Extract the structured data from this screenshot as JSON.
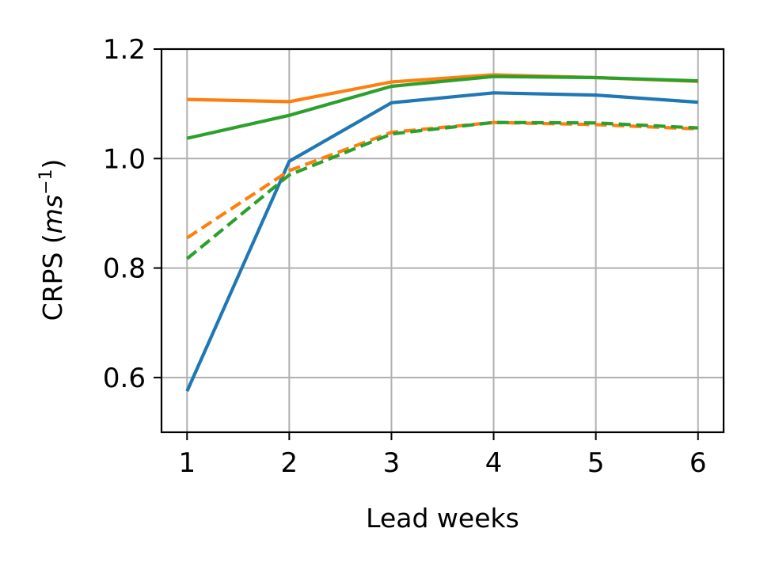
{
  "chart_data": {
    "type": "line",
    "xlabel": "Lead weeks",
    "ylabel_prefix": "CRPS (",
    "ylabel_unit_base": "ms",
    "ylabel_unit_exp": "−1",
    "ylabel_suffix": ")",
    "x": [
      1,
      2,
      3,
      4,
      5,
      6
    ],
    "xlim": [
      0.75,
      6.25
    ],
    "ylim": [
      0.5,
      1.2
    ],
    "xticks": [
      "1",
      "2",
      "3",
      "4",
      "5",
      "6"
    ],
    "yticks": [
      "0.6",
      "0.8",
      "1.0",
      "1.2"
    ],
    "ytick_values": [
      0.6,
      0.8,
      1.0,
      1.2
    ],
    "grid": true,
    "legend": "none",
    "series": [
      {
        "color": "#1f77b4",
        "style": "solid",
        "values": [
          0.575,
          0.995,
          1.102,
          1.12,
          1.116,
          1.103
        ]
      },
      {
        "color": "#ff7f0e",
        "style": "solid",
        "values": [
          1.108,
          1.104,
          1.14,
          1.153,
          1.148,
          1.141
        ]
      },
      {
        "color": "#2ca02c",
        "style": "solid",
        "values": [
          1.037,
          1.079,
          1.132,
          1.15,
          1.148,
          1.142
        ]
      },
      {
        "color": "#ff7f0e",
        "style": "dashed",
        "values": [
          0.855,
          0.978,
          1.048,
          1.066,
          1.062,
          1.054
        ]
      },
      {
        "color": "#2ca02c",
        "style": "dashed",
        "values": [
          0.817,
          0.97,
          1.045,
          1.066,
          1.065,
          1.056
        ]
      }
    ]
  }
}
